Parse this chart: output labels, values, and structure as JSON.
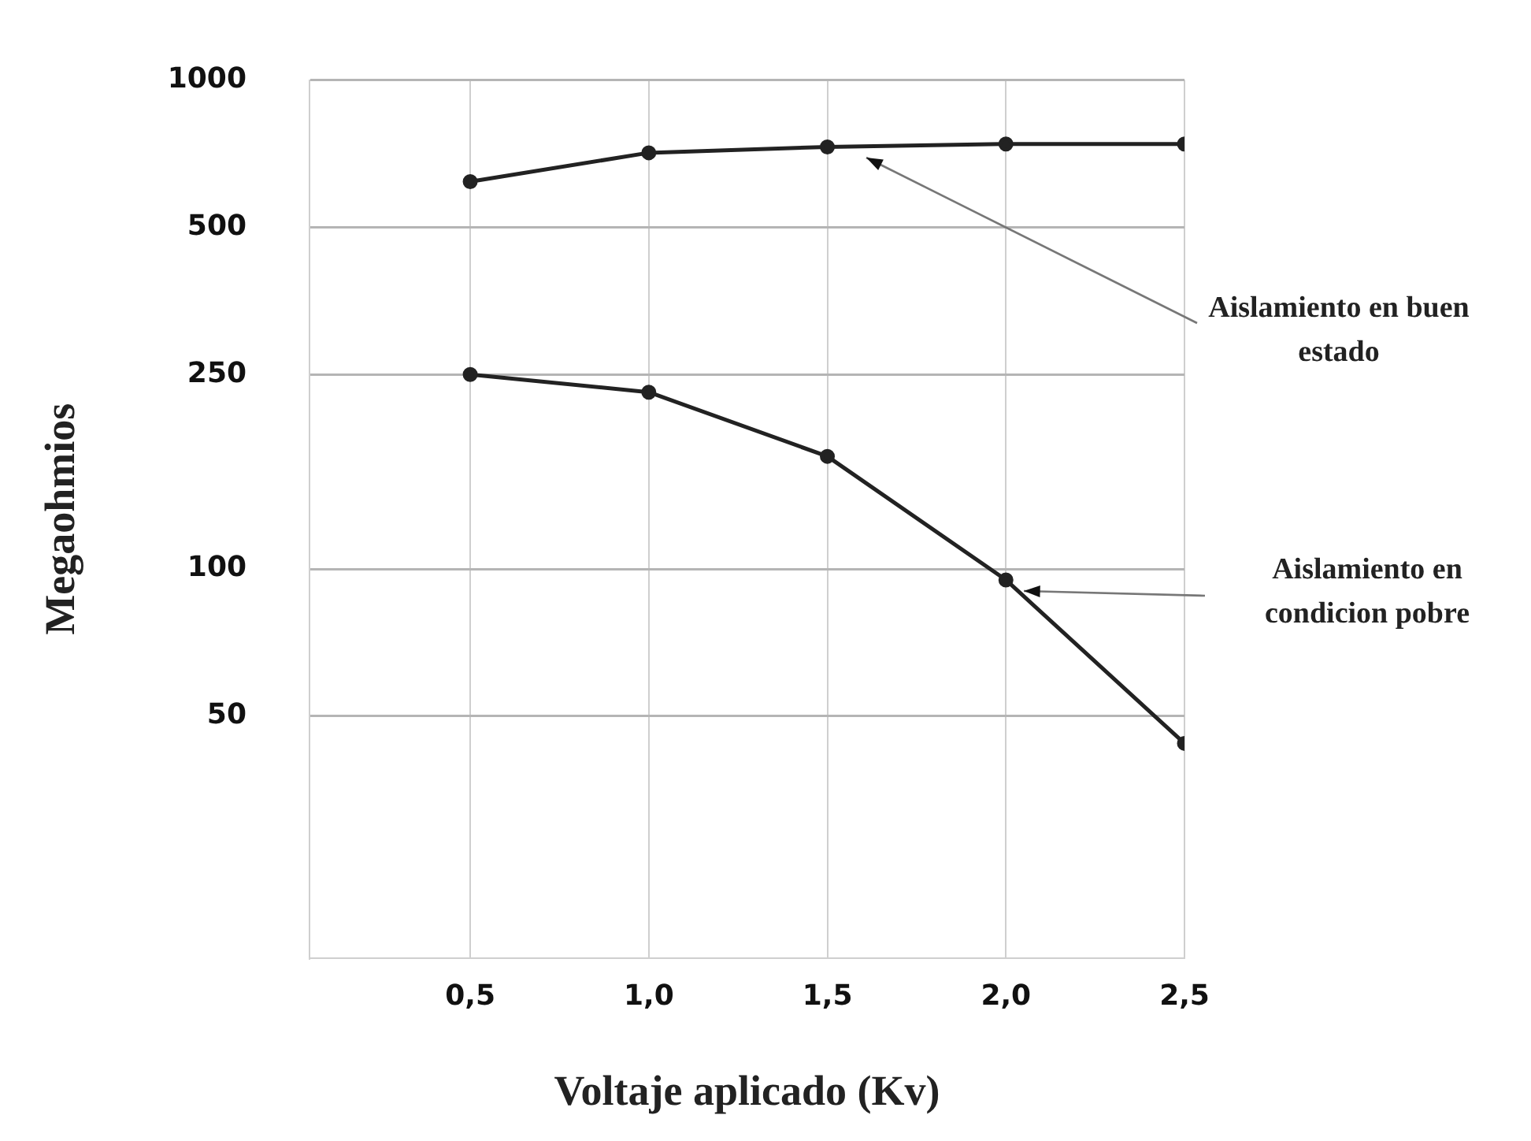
{
  "chart_data": {
    "type": "line",
    "xlabel": "Voltaje aplicado (Kv)",
    "ylabel": "Megaohmios",
    "log": "y",
    "grid": true,
    "legend": false,
    "marker": "circle",
    "line_style": "solid",
    "xlim": [
      0.05,
      2.5
    ],
    "xticks": [
      {
        "value": 0.5,
        "label": "0,5"
      },
      {
        "value": 1.0,
        "label": "1,0"
      },
      {
        "value": 1.5,
        "label": "1,5"
      },
      {
        "value": 2.0,
        "label": "2,0"
      },
      {
        "value": 2.5,
        "label": "2,5"
      }
    ],
    "ylim": [
      16,
      1000
    ],
    "yticks": [
      50,
      100,
      250,
      500,
      1000
    ],
    "x": [
      0.5,
      1.0,
      1.5,
      2.0,
      2.5
    ],
    "series": [
      {
        "color": "#222222",
        "values": [
          620,
          710,
          730,
          740,
          740
        ]
      },
      {
        "color": "#222222",
        "values": [
          250,
          230,
          170,
          95,
          44
        ]
      }
    ],
    "annotations": [
      "Aislamiento en buen estado",
      "Aislamiento en condicion pobre"
    ]
  }
}
